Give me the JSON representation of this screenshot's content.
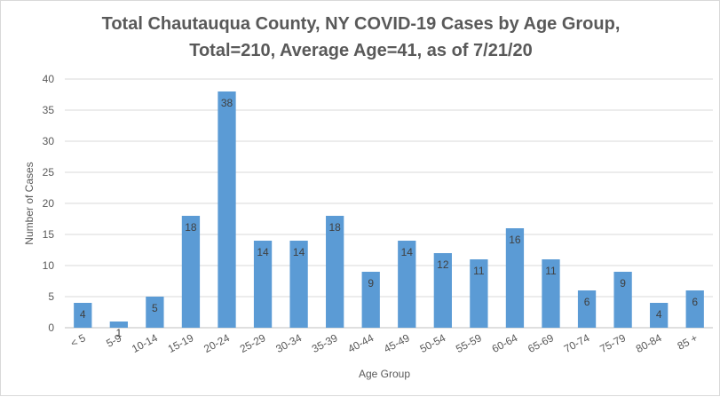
{
  "chart_data": {
    "type": "bar",
    "title": "Total Chautauqua County, NY COVID-19 Cases by Age Group,",
    "subtitle": "Total=210, Average Age=41, as of 7/21/20",
    "xlabel": "Age Group",
    "ylabel": "Number of Cases",
    "ylim": [
      0,
      40
    ],
    "yticks": [
      0,
      5,
      10,
      15,
      20,
      25,
      30,
      35,
      40
    ],
    "grid": true,
    "legend": "none",
    "bar_color": "#5b9bd5",
    "categories": [
      "< 5",
      "5-9",
      "10-14",
      "15-19",
      "20-24",
      "25-29",
      "30-34",
      "35-39",
      "40-44",
      "45-49",
      "50-54",
      "55-59",
      "60-64",
      "65-69",
      "70-74",
      "75-79",
      "80-84",
      "85 +"
    ],
    "values": [
      4,
      1,
      5,
      18,
      38,
      14,
      14,
      18,
      9,
      14,
      12,
      11,
      16,
      11,
      6,
      9,
      4,
      6
    ]
  }
}
